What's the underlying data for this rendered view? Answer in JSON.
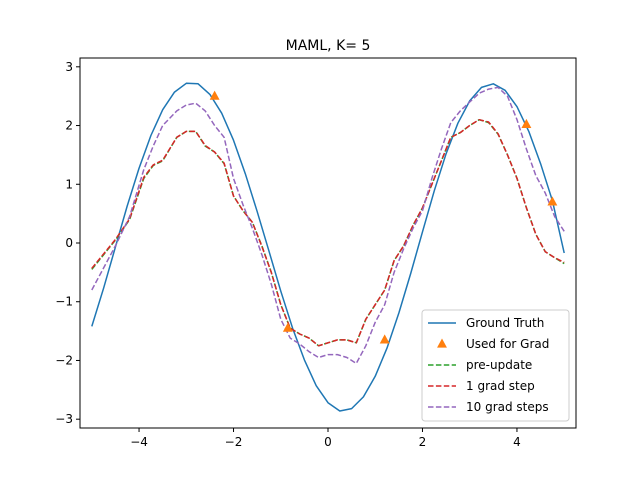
{
  "chart_data": {
    "type": "line",
    "title": "MAML, K= 5",
    "xlabel": "",
    "ylabel": "",
    "xlim": [
      -5.25,
      5.25
    ],
    "ylim": [
      -3.15,
      3.15
    ],
    "xticks": [
      -4,
      -2,
      0,
      2,
      4
    ],
    "xtick_labels": [
      "−4",
      "−2",
      "0",
      "2",
      "4"
    ],
    "yticks": [
      -3,
      -2,
      -1,
      0,
      1,
      2,
      3
    ],
    "ytick_labels": [
      "−3",
      "−2",
      "−1",
      "0",
      "1",
      "2",
      "3"
    ],
    "grid": false,
    "legend_position": "lower right",
    "series": [
      {
        "name": "Ground Truth",
        "style": "solid",
        "color": "#1f77b4",
        "x": [
          -5.0,
          -4.75,
          -4.5,
          -4.25,
          -4.0,
          -3.75,
          -3.5,
          -3.25,
          -3.0,
          -2.75,
          -2.5,
          -2.25,
          -2.0,
          -1.75,
          -1.5,
          -1.25,
          -1.0,
          -0.75,
          -0.5,
          -0.25,
          0.0,
          0.25,
          0.5,
          0.75,
          1.0,
          1.25,
          1.5,
          1.75,
          2.0,
          2.25,
          2.5,
          2.75,
          3.0,
          3.25,
          3.5,
          3.75,
          4.0,
          4.25,
          4.5,
          4.75,
          5.0
        ],
        "y": [
          -1.42,
          -0.77,
          -0.07,
          0.63,
          1.27,
          1.83,
          2.27,
          2.57,
          2.72,
          2.71,
          2.53,
          2.21,
          1.75,
          1.18,
          0.54,
          -0.14,
          -0.82,
          -1.45,
          -1.99,
          -2.43,
          -2.72,
          -2.86,
          -2.82,
          -2.62,
          -2.27,
          -1.79,
          -1.19,
          -0.52,
          0.19,
          0.89,
          1.52,
          2.04,
          2.42,
          2.65,
          2.71,
          2.6,
          2.32,
          1.9,
          1.35,
          0.72,
          -0.17
        ]
      },
      {
        "name": "pre-update",
        "style": "dashed",
        "color": "#2ca02c",
        "x": [
          -5.0,
          -4.5,
          -4.2,
          -3.9,
          -3.7,
          -3.5,
          -3.2,
          -3.0,
          -2.8,
          -2.6,
          -2.4,
          -2.2,
          -2.0,
          -1.8,
          -1.6,
          -1.4,
          -1.2,
          -1.0,
          -0.8,
          -0.6,
          -0.4,
          -0.2,
          0.0,
          0.2,
          0.4,
          0.6,
          0.8,
          1.0,
          1.2,
          1.4,
          1.6,
          1.8,
          2.0,
          2.2,
          2.4,
          2.6,
          2.8,
          3.0,
          3.2,
          3.4,
          3.6,
          3.8,
          4.0,
          4.2,
          4.4,
          4.6,
          4.8,
          5.0
        ],
        "y": [
          -0.45,
          0.05,
          0.4,
          1.1,
          1.32,
          1.4,
          1.8,
          1.9,
          1.9,
          1.65,
          1.55,
          1.35,
          0.8,
          0.55,
          0.35,
          -0.05,
          -0.5,
          -1.05,
          -1.45,
          -1.55,
          -1.62,
          -1.75,
          -1.7,
          -1.65,
          -1.65,
          -1.7,
          -1.3,
          -1.05,
          -0.8,
          -0.3,
          -0.05,
          0.3,
          0.6,
          1.0,
          1.4,
          1.8,
          1.88,
          2.0,
          2.1,
          2.05,
          1.85,
          1.5,
          1.1,
          0.6,
          0.15,
          -0.15,
          -0.25,
          -0.35
        ]
      },
      {
        "name": "1 grad step",
        "style": "dashed",
        "color": "#d62728",
        "x": [
          -5.0,
          -4.5,
          -4.2,
          -3.9,
          -3.7,
          -3.5,
          -3.2,
          -3.0,
          -2.8,
          -2.6,
          -2.4,
          -2.2,
          -2.0,
          -1.8,
          -1.6,
          -1.4,
          -1.2,
          -1.0,
          -0.8,
          -0.6,
          -0.4,
          -0.2,
          0.0,
          0.2,
          0.4,
          0.6,
          0.8,
          1.0,
          1.2,
          1.4,
          1.6,
          1.8,
          2.0,
          2.2,
          2.4,
          2.6,
          2.8,
          3.0,
          3.2,
          3.4,
          3.6,
          3.8,
          4.0,
          4.2,
          4.4,
          4.6,
          4.8,
          5.0
        ],
        "y": [
          -0.43,
          0.06,
          0.41,
          1.12,
          1.33,
          1.41,
          1.8,
          1.9,
          1.9,
          1.66,
          1.55,
          1.36,
          0.8,
          0.55,
          0.35,
          -0.06,
          -0.5,
          -1.05,
          -1.45,
          -1.55,
          -1.62,
          -1.75,
          -1.7,
          -1.65,
          -1.65,
          -1.7,
          -1.3,
          -1.05,
          -0.8,
          -0.3,
          -0.05,
          0.3,
          0.6,
          1.0,
          1.4,
          1.8,
          1.88,
          2.0,
          2.1,
          2.06,
          1.86,
          1.5,
          1.1,
          0.6,
          0.15,
          -0.15,
          -0.25,
          -0.33
        ]
      },
      {
        "name": "10 grad steps",
        "style": "dashed",
        "color": "#9467bd",
        "x": [
          -5.0,
          -4.5,
          -4.2,
          -3.9,
          -3.7,
          -3.5,
          -3.2,
          -3.0,
          -2.8,
          -2.6,
          -2.4,
          -2.2,
          -2.0,
          -1.8,
          -1.6,
          -1.4,
          -1.2,
          -1.0,
          -0.8,
          -0.6,
          -0.4,
          -0.2,
          0.0,
          0.2,
          0.4,
          0.6,
          0.8,
          1.0,
          1.2,
          1.4,
          1.6,
          1.8,
          2.0,
          2.2,
          2.4,
          2.6,
          2.8,
          3.0,
          3.2,
          3.4,
          3.6,
          3.8,
          4.0,
          4.2,
          4.4,
          4.6,
          4.8,
          5.0
        ],
        "y": [
          -0.8,
          -0.05,
          0.45,
          1.25,
          1.65,
          2.0,
          2.25,
          2.35,
          2.38,
          2.25,
          2.0,
          1.8,
          1.1,
          0.65,
          0.25,
          -0.2,
          -0.7,
          -1.3,
          -1.62,
          -1.72,
          -1.85,
          -1.95,
          -1.9,
          -1.9,
          -1.95,
          -2.05,
          -1.75,
          -1.35,
          -1.05,
          -0.5,
          -0.1,
          0.25,
          0.55,
          1.1,
          1.6,
          2.05,
          2.25,
          2.4,
          2.55,
          2.62,
          2.65,
          2.5,
          2.1,
          1.6,
          1.15,
          0.85,
          0.45,
          0.2
        ]
      }
    ],
    "used_for_grad": {
      "name": "Used for Grad",
      "marker": "triangle",
      "color": "#ff7f0e",
      "points": [
        [
          -2.4,
          2.5
        ],
        [
          -0.85,
          -1.45
        ],
        [
          1.2,
          -1.65
        ],
        [
          4.2,
          2.02
        ],
        [
          4.75,
          0.7
        ]
      ]
    }
  }
}
